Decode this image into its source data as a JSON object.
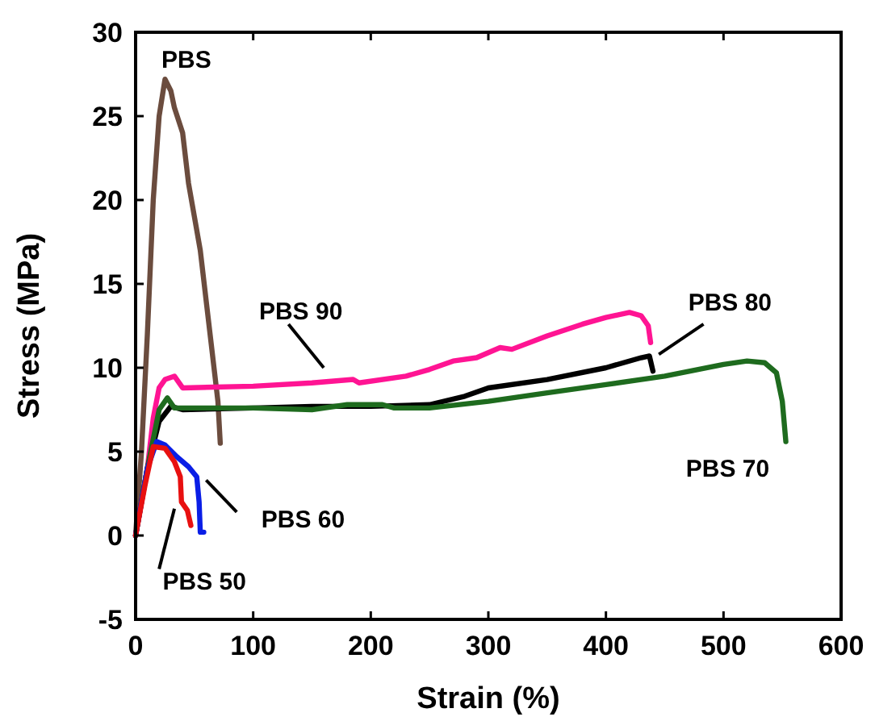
{
  "chart_data": {
    "type": "line",
    "xlabel": "Strain (%)",
    "ylabel": "Stress (MPa)",
    "xlim": [
      0,
      600
    ],
    "xticks": [
      0,
      100,
      200,
      300,
      400,
      500,
      600
    ],
    "ylim": [
      -5,
      30
    ],
    "yticks": [
      -5,
      0,
      5,
      10,
      15,
      20,
      25,
      30
    ],
    "grid": false,
    "marker": "none",
    "line_style": "solid",
    "series": [
      {
        "name": "PBS",
        "color": "#6b4c3e",
        "x": [
          0,
          5,
          10,
          15,
          20,
          25,
          30,
          33,
          40,
          45,
          50,
          55,
          60,
          65,
          70,
          72
        ],
        "values": [
          0,
          5,
          12,
          20,
          25,
          27.2,
          26.5,
          25.5,
          24,
          21,
          19,
          17,
          14,
          11,
          8,
          5.5
        ]
      },
      {
        "name": "PBS 90",
        "color": "#ff1493",
        "x": [
          0,
          10,
          15,
          20,
          25,
          33,
          40,
          100,
          150,
          185,
          190,
          230,
          250,
          270,
          290,
          310,
          320,
          350,
          380,
          400,
          420,
          430,
          436,
          438
        ],
        "values": [
          0,
          4,
          7,
          8.8,
          9.3,
          9.5,
          8.8,
          8.9,
          9.1,
          9.3,
          9.1,
          9.5,
          9.9,
          10.4,
          10.6,
          11.2,
          11.1,
          11.9,
          12.6,
          13,
          13.3,
          13.1,
          12.5,
          11.5
        ]
      },
      {
        "name": "PBS 80",
        "color": "#000000",
        "x": [
          0,
          10,
          20,
          30,
          40,
          100,
          150,
          200,
          250,
          280,
          300,
          350,
          400,
          430,
          437,
          440
        ],
        "values": [
          0,
          4,
          6.8,
          7.7,
          7.5,
          7.6,
          7.7,
          7.7,
          7.8,
          8.3,
          8.8,
          9.3,
          10,
          10.6,
          10.7,
          9.8
        ]
      },
      {
        "name": "PBS 70",
        "color": "#1e6b1e",
        "x": [
          0,
          10,
          20,
          27,
          33,
          100,
          150,
          180,
          210,
          220,
          250,
          300,
          350,
          400,
          450,
          500,
          520,
          535,
          545,
          550,
          553
        ],
        "values": [
          0,
          4,
          7.5,
          8.2,
          7.6,
          7.6,
          7.5,
          7.8,
          7.8,
          7.6,
          7.6,
          8,
          8.5,
          9,
          9.5,
          10.2,
          10.4,
          10.3,
          9.7,
          8,
          5.6
        ]
      },
      {
        "name": "PBS 60",
        "color": "#0a1ee6",
        "x": [
          0,
          5,
          10,
          18,
          25,
          35,
          45,
          52,
          54,
          55,
          58
        ],
        "values": [
          0,
          2,
          4,
          5.6,
          5.4,
          4.7,
          4.1,
          3.5,
          2,
          0.2,
          0.2
        ]
      },
      {
        "name": "PBS 50",
        "color": "#e81010",
        "x": [
          0,
          8,
          15,
          25,
          33,
          38,
          39,
          44,
          47
        ],
        "values": [
          0,
          3,
          5.3,
          5.2,
          4.4,
          3.5,
          2,
          1.5,
          0.6
        ]
      }
    ]
  }
}
